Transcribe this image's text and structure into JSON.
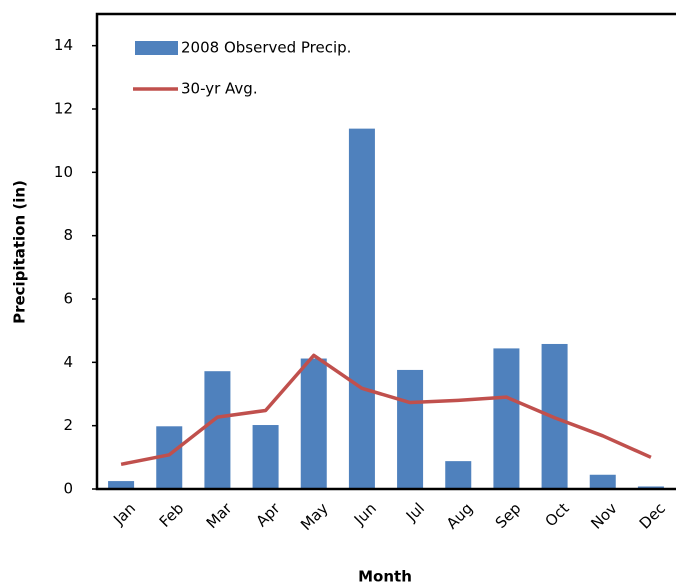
{
  "chart_data": {
    "type": "bar",
    "xlabel": "Month",
    "ylabel": "Precipitation (in)",
    "categories": [
      "Jan",
      "Feb",
      "Mar",
      "Apr",
      "May",
      "Jun",
      "Jul",
      "Aug",
      "Sep",
      "Oct",
      "Nov",
      "Dec"
    ],
    "series": [
      {
        "name": "2008 Observed Precip.",
        "type": "bar",
        "color": "#4f81bd",
        "values": [
          0.25,
          1.98,
          3.72,
          2.02,
          4.12,
          11.38,
          3.76,
          0.88,
          4.44,
          4.58,
          0.45,
          0.08
        ]
      },
      {
        "name": "30-yr Avg.",
        "type": "line",
        "color": "#c0504d",
        "values": [
          0.78,
          1.08,
          2.27,
          2.48,
          4.22,
          3.18,
          2.73,
          2.8,
          2.9,
          2.25,
          1.68,
          1.0
        ]
      }
    ],
    "ylim": [
      0,
      15
    ],
    "yticks": [
      0,
      2,
      4,
      6,
      8,
      10,
      12,
      14
    ],
    "grid": false
  }
}
